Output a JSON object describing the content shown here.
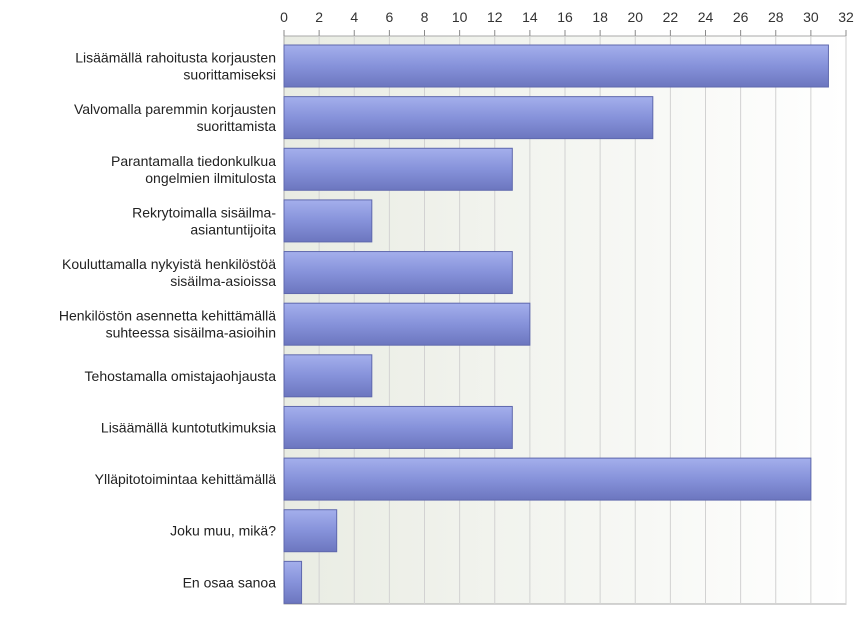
{
  "chart_data": {
    "type": "bar",
    "orientation": "horizontal",
    "title": "",
    "xlabel": "",
    "ylabel": "",
    "xlim": [
      0,
      32
    ],
    "ticks": [
      0,
      2,
      4,
      6,
      8,
      10,
      12,
      14,
      16,
      18,
      20,
      22,
      24,
      26,
      28,
      30,
      32
    ],
    "grid": true,
    "axis_position": "top",
    "bar_color": "#8390d6",
    "categories": [
      [
        "Lisäämällä rahoitusta korjausten",
        "suorittamiseksi"
      ],
      [
        "Valvomalla paremmin korjausten",
        "suorittamista"
      ],
      [
        "Parantamalla tiedonkulkua",
        "ongelmien ilmitulosta"
      ],
      [
        "Rekrytoimalla sisäilma-",
        "asiantuntijoita"
      ],
      [
        "Kouluttamalla nykyistä henkilöstöä",
        "sisäilma-asioissa"
      ],
      [
        "Henkilöstön asennetta kehittämällä",
        "suhteessa sisäilma-asioihin"
      ],
      [
        "Tehostamalla omistajaohjausta"
      ],
      [
        "Lisäämällä kuntotutkimuksia"
      ],
      [
        "Ylläpitotoimintaa kehittämällä"
      ],
      [
        "Joku muu, mikä?"
      ],
      [
        "En osaa sanoa"
      ]
    ],
    "values": [
      31,
      21,
      13,
      5,
      13,
      14,
      5,
      13,
      30,
      3,
      1
    ]
  }
}
